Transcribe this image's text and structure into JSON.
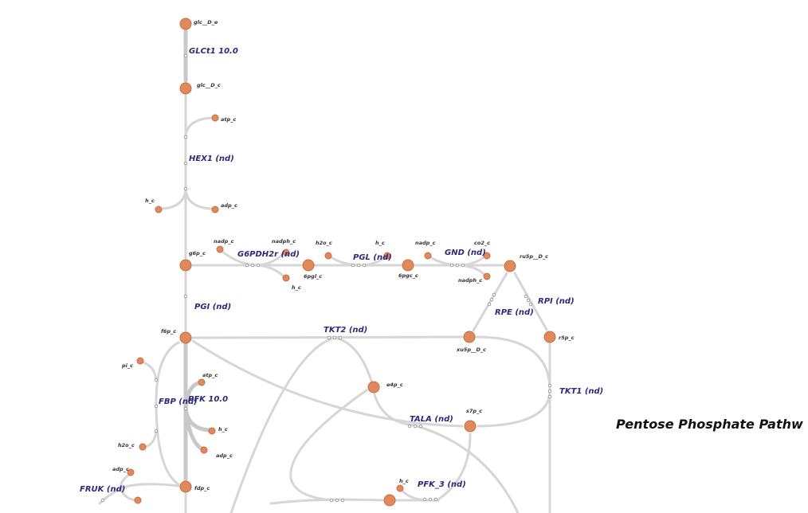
{
  "title": "Pentose Phosphate Pathw",
  "reactions": {
    "glct1": "GLCt1 10.0",
    "hex1": "HEX1 (nd)",
    "g6pdh2r": "G6PDH2r (nd)",
    "pgl": "PGL (nd)",
    "gnd": "GND (nd)",
    "pgi": "PGI (nd)",
    "rpi": "RPI (nd)",
    "rpe": "RPE (nd)",
    "tkt2": "TKT2 (nd)",
    "tkt1": "TKT1 (nd)",
    "fbp": "FBP (nd)",
    "pfk": "PFK 10.0",
    "tala": "TALA (nd)",
    "pfk_3": "PFK_3 (nd)",
    "fruk": "FRUK (nd)"
  },
  "metabolites": {
    "glc_e": "glc__D_e",
    "glc_c": "glc__D_c",
    "atp_hex": "atp_c",
    "h_hex": "h_c",
    "adp_hex": "adp_c",
    "g6p": "g6p_c",
    "nadp_g6": "nadp_c",
    "nadph_g6": "nadph_c",
    "h_g6": "h_c",
    "h2o_pgl": "h2o_c",
    "h_pgl": "h_c",
    "nadp_gnd": "nadp_c",
    "co2": "co2_c",
    "nadph_gnd": "nadph_c",
    "pgl6": "6pgl_c",
    "pgc6": "6pgc_c",
    "ru5p": "ru5p__D_c",
    "f6p": "f6p_c",
    "xu5p": "xu5p__D_c",
    "r5p": "r5p_c",
    "e4p": "e4p_c",
    "s7p": "s7p_c",
    "pi_fbp": "pi_c",
    "atp_pfk": "atp_c",
    "h_pfk": "h_c",
    "adp_pfk": "adp_c",
    "h2o_fbp": "h2o_c",
    "adp_fruk": "adp_c",
    "fdp": "fdp_c",
    "h_pfk3": "h_c"
  }
}
